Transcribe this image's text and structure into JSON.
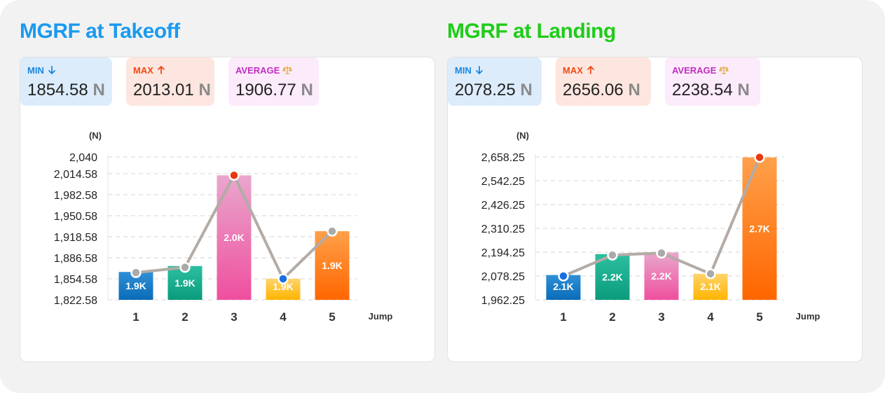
{
  "panels": [
    {
      "title": "MGRF at Takeoff",
      "title_color": "#1a9af0",
      "stats": [
        {
          "label": "MIN",
          "icon": "arrow-down-icon",
          "value": "1854.58",
          "unit": "N",
          "bg": "#dcecfb",
          "color": "#1a86e0"
        },
        {
          "label": "MAX",
          "icon": "arrow-up-icon",
          "value": "2013.01",
          "unit": "N",
          "bg": "#fde6df",
          "color": "#ef4a16"
        },
        {
          "label": "AVERAGE",
          "icon": "balance-scale-icon",
          "value": "1906.77",
          "unit": "N",
          "bg": "#fcebfb",
          "color": "#bf2fc1"
        }
      ],
      "chart_data": {
        "type": "bar",
        "y_unit_label": "(N)",
        "xlabel": "Jump",
        "categories": [
          "1",
          "2",
          "3",
          "4",
          "5"
        ],
        "values": [
          1865,
          1874,
          2012,
          1854.58,
          1927
        ],
        "bar_labels": [
          "1.9K",
          "1.9K",
          "2.0K",
          "1.9K",
          "1.9K"
        ],
        "bar_colors": [
          [
            "#2f8fd6",
            "#0a6cb8"
          ],
          [
            "#2cbf9f",
            "#0a9b7c"
          ],
          [
            "#e9a7cd",
            "#ef4f9e"
          ],
          [
            "#ffd36b",
            "#ffb400"
          ],
          [
            "#ffa04a",
            "#ff6600"
          ]
        ],
        "yticks": [
          "2,040",
          "2,014.58",
          "1,982.58",
          "1,950.58",
          "1,918.58",
          "1,886.58",
          "1,854.58",
          "1,822.58"
        ],
        "ytick_values": [
          2040,
          2014.58,
          1982.58,
          1950.58,
          1918.58,
          1886.58,
          1854.58,
          1822.58
        ],
        "ylim": [
          1822.58,
          2040
        ],
        "line_values": [
          1864,
          1872,
          2012,
          1854.58,
          1927
        ],
        "marker_colors": [
          "#aaaaaa",
          "#aaaaaa",
          "#e8390e",
          "#1a6fe0",
          "#aaaaaa"
        ],
        "line_color": "#b3aba6",
        "grid": true
      }
    },
    {
      "title": "MGRF at Landing",
      "title_color": "#20cc1a",
      "stats": [
        {
          "label": "MIN",
          "icon": "arrow-down-icon",
          "value": "2078.25",
          "unit": "N",
          "bg": "#dcecfb",
          "color": "#1a86e0"
        },
        {
          "label": "MAX",
          "icon": "arrow-up-icon",
          "value": "2656.06",
          "unit": "N",
          "bg": "#fde6df",
          "color": "#ef4a16"
        },
        {
          "label": "AVERAGE",
          "icon": "balance-scale-icon",
          "value": "2238.54",
          "unit": "N",
          "bg": "#fcebfb",
          "color": "#bf2fc1"
        }
      ],
      "chart_data": {
        "type": "bar",
        "y_unit_label": "(N)",
        "xlabel": "Jump",
        "categories": [
          "1",
          "2",
          "3",
          "4",
          "5"
        ],
        "values": [
          2083,
          2185,
          2193,
          2089,
          2656.06
        ],
        "bar_labels": [
          "2.1K",
          "2.2K",
          "2.2K",
          "2.1K",
          "2.7K"
        ],
        "bar_colors": [
          [
            "#2f8fd6",
            "#0a6cb8"
          ],
          [
            "#2cbf9f",
            "#0a9b7c"
          ],
          [
            "#e9a7cd",
            "#ef4f9e"
          ],
          [
            "#ffd36b",
            "#ffb400"
          ],
          [
            "#ffa04a",
            "#ff6600"
          ]
        ],
        "yticks": [
          "2,658.25",
          "2,542.25",
          "2,426.25",
          "2,310.25",
          "2,194.25",
          "2,078.25",
          "1,962.25"
        ],
        "ytick_values": [
          2658.25,
          2542.25,
          2426.25,
          2310.25,
          2194.25,
          2078.25,
          1962.25
        ],
        "ylim": [
          1962.25,
          2658.25
        ],
        "line_values": [
          2078.25,
          2180,
          2190,
          2089,
          2656.06
        ],
        "marker_colors": [
          "#1a6fe0",
          "#aaaaaa",
          "#aaaaaa",
          "#aaaaaa",
          "#e8390e"
        ],
        "line_color": "#b3aba6",
        "grid": true
      }
    }
  ]
}
